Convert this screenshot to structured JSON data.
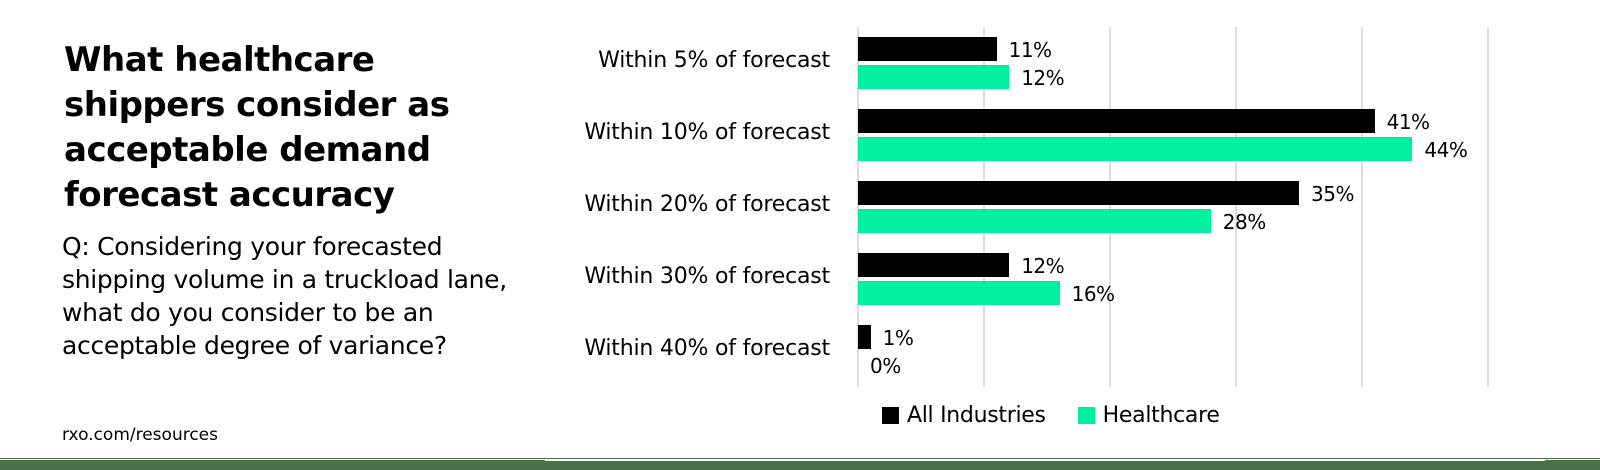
{
  "title": "What healthcare shippers consider as acceptable demand forecast accuracy",
  "question": "Q: Considering your forecasted shipping volume in a truckload lane, what do you consider to be an acceptable degree of variance?",
  "source": "rxo.com/resources",
  "colors": {
    "all_industries": "#000000",
    "healthcare": "#00f0a0",
    "gridline": "#dcdcdc",
    "footer": "#4a7149"
  },
  "legend": {
    "all_industries": "All Industries",
    "healthcare": "Healthcare"
  },
  "rows": [
    {
      "label": "Within 5% of forecast",
      "all": "11%",
      "hc": "12%"
    },
    {
      "label": "Within 10% of forecast",
      "all": "41%",
      "hc": "44%"
    },
    {
      "label": "Within 20% of forecast",
      "all": "35%",
      "hc": "28%"
    },
    {
      "label": "Within 30% of forecast",
      "all": "12%",
      "hc": "16%"
    },
    {
      "label": "Within 40% of forecast",
      "all": "1%",
      "hc": "0%"
    }
  ],
  "chart_data": {
    "type": "bar",
    "orientation": "horizontal",
    "title": "What healthcare shippers consider as acceptable demand forecast accuracy",
    "subtitle": "Q: Considering your forecasted shipping volume in a truckload lane, what do you consider to be an acceptable degree of variance?",
    "categories": [
      "Within 5% of forecast",
      "Within 10% of forecast",
      "Within 20% of forecast",
      "Within 30% of forecast",
      "Within 40% of forecast"
    ],
    "series": [
      {
        "name": "All Industries",
        "color": "#000000",
        "values": [
          11,
          41,
          35,
          12,
          1
        ]
      },
      {
        "name": "Healthcare",
        "color": "#00f0a0",
        "values": [
          12,
          44,
          28,
          16,
          0
        ]
      }
    ],
    "xlabel": "",
    "ylabel": "",
    "xlim": [
      0,
      50
    ],
    "grid": true,
    "gridlines_at": [
      0,
      10,
      20,
      30,
      40,
      50
    ],
    "data_labels": true,
    "value_format": "percent",
    "legend_position": "bottom"
  }
}
